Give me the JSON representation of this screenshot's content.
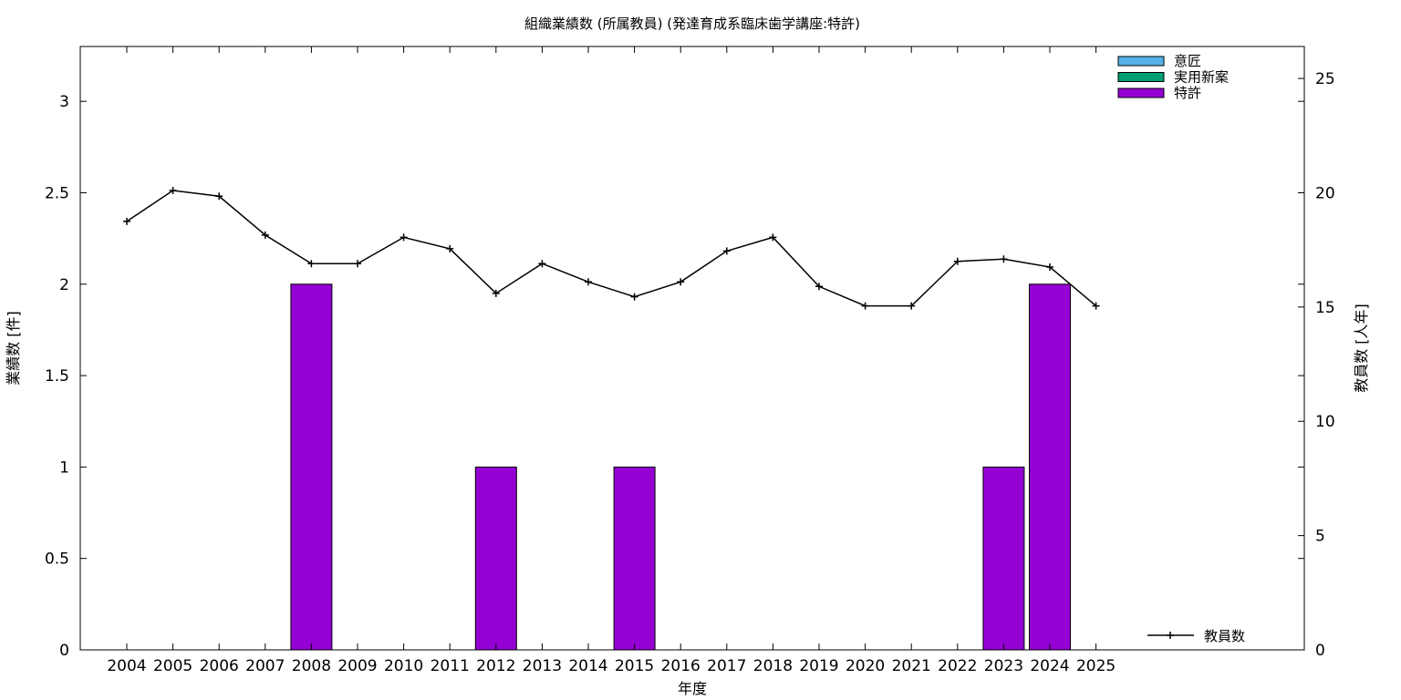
{
  "chart_data": {
    "type": "bar",
    "title": "組織業績数 (所属教員) (発達育成系臨床歯学講座:特許)",
    "xlabel": "年度",
    "ylabel": "業績数 [件]",
    "y2label": "教員数 [人年]",
    "categories": [
      "2004",
      "2005",
      "2006",
      "2007",
      "2008",
      "2009",
      "2010",
      "2011",
      "2012",
      "2013",
      "2014",
      "2015",
      "2016",
      "2017",
      "2018",
      "2019",
      "2020",
      "2021",
      "2022",
      "2023",
      "2024",
      "2025"
    ],
    "ylim": [
      0,
      3.3
    ],
    "y2lim": [
      0,
      26.4
    ],
    "yticks": [
      "0",
      "0.5",
      "1",
      "1.5",
      "2",
      "2.5",
      "3"
    ],
    "y2ticks": [
      "0",
      "5",
      "10",
      "15",
      "20",
      "25"
    ],
    "grid": false,
    "legend_position": "top-right",
    "series": [
      {
        "name": "意匠",
        "kind": "bar",
        "axis": "left",
        "color": "#56b4e9",
        "values": [
          0,
          0,
          0,
          0,
          0,
          0,
          0,
          0,
          0,
          0,
          0,
          0,
          0,
          0,
          0,
          0,
          0,
          0,
          0,
          0,
          0,
          0
        ]
      },
      {
        "name": "実用新案",
        "kind": "bar",
        "axis": "left",
        "color": "#009e73",
        "values": [
          0,
          0,
          0,
          0,
          0,
          0,
          0,
          0,
          0,
          0,
          0,
          0,
          0,
          0,
          0,
          0,
          0,
          0,
          0,
          0,
          0,
          0
        ]
      },
      {
        "name": "特許",
        "kind": "bar",
        "axis": "left",
        "color": "#9400d3",
        "values": [
          0,
          0,
          0,
          0,
          2,
          0,
          0,
          0,
          1,
          0,
          0,
          1,
          0,
          0,
          0,
          0,
          0,
          0,
          0,
          1,
          2,
          0
        ]
      },
      {
        "name": "教員数",
        "kind": "line",
        "axis": "right",
        "color": "#000000",
        "values": [
          18.75,
          20.1,
          19.85,
          18.15,
          16.9,
          16.9,
          18.05,
          17.55,
          15.6,
          16.9,
          16.1,
          15.45,
          16.1,
          17.45,
          18.05,
          15.9,
          15.05,
          15.05,
          17.0,
          17.1,
          16.75,
          15.05
        ]
      }
    ]
  }
}
